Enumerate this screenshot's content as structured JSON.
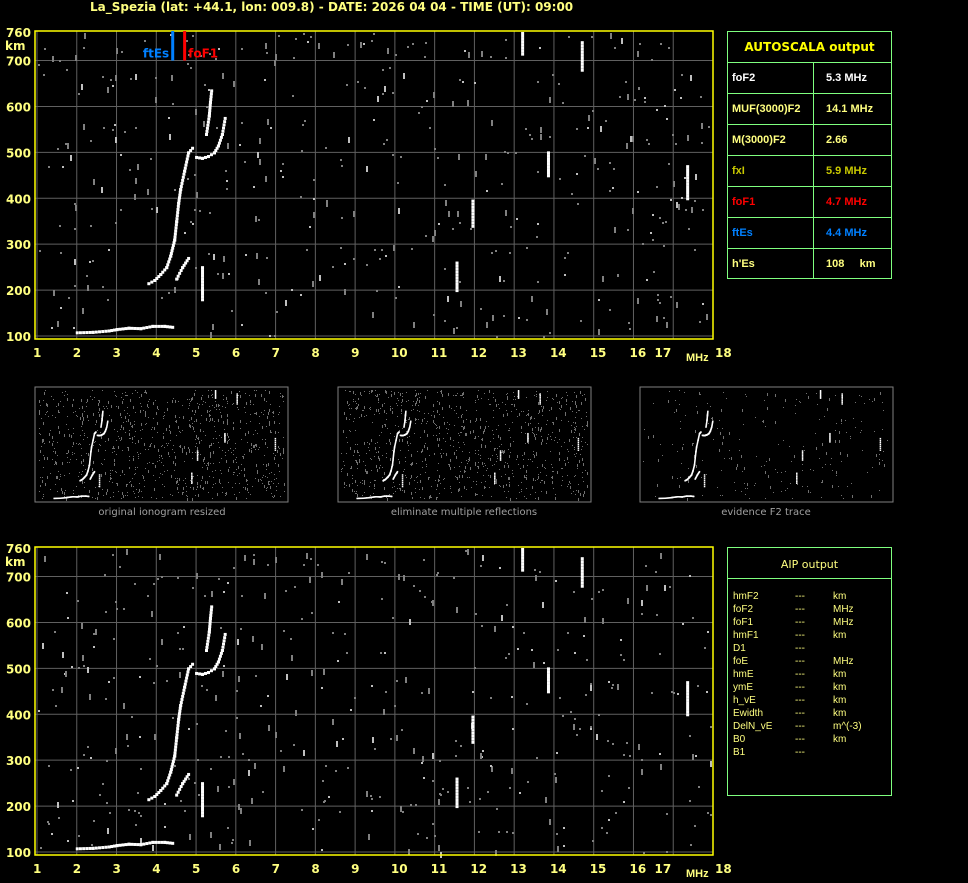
{
  "header": {
    "title": "La_Spezia (lat: +44.1, lon: 009.8) - DATE: 2026 04 04 - TIME (UT): 09:00"
  },
  "colors": {
    "axis": "#ffff00",
    "label": "#ffff80",
    "grid": "#606060",
    "panel_border": "#7fff7f",
    "foF1": "#ff0000",
    "ftEs": "#0080ff",
    "fxI": "#c8c800",
    "trace": "#ffffff",
    "noise": "#808080"
  },
  "chart_data": [
    {
      "type": "scatter",
      "title": "",
      "xlabel": "MHz",
      "ylabel": "km",
      "xlim": [
        1,
        18
      ],
      "ylim": [
        100,
        760
      ],
      "xticks": [
        "1",
        "2",
        "3",
        "4",
        "5",
        "6",
        "7",
        "8",
        "9",
        "10",
        "11",
        "12",
        "13",
        "14",
        "15",
        "16",
        "17",
        "18"
      ],
      "yticks": [
        "760",
        "700",
        "600",
        "500",
        "400",
        "300",
        "200",
        "100"
      ],
      "grid": true,
      "markers": [
        {
          "label": "ftEs",
          "freq": 4.4,
          "color": "#0080ff"
        },
        {
          "label": "foF1",
          "freq": 4.7,
          "color": "#ff0000"
        }
      ],
      "traces": [
        [
          [
            2.0,
            108
          ],
          [
            2.4,
            109
          ],
          [
            2.8,
            112
          ],
          [
            3.0,
            115
          ],
          [
            3.3,
            118
          ],
          [
            3.6,
            117
          ],
          [
            3.9,
            122
          ],
          [
            4.2,
            122
          ],
          [
            4.4,
            120
          ]
        ],
        [
          [
            3.8,
            215
          ],
          [
            3.95,
            222
          ],
          [
            4.1,
            235
          ],
          [
            4.25,
            250
          ],
          [
            4.35,
            275
          ],
          [
            4.45,
            310
          ],
          [
            4.5,
            350
          ],
          [
            4.55,
            390
          ],
          [
            4.6,
            420
          ],
          [
            4.7,
            460
          ],
          [
            4.8,
            500
          ],
          [
            4.9,
            510
          ]
        ],
        [
          [
            4.5,
            225
          ],
          [
            4.65,
            250
          ],
          [
            4.8,
            270
          ]
        ],
        [
          [
            5.0,
            490
          ],
          [
            5.15,
            488
          ],
          [
            5.3,
            492
          ],
          [
            5.45,
            500
          ],
          [
            5.55,
            515
          ],
          [
            5.65,
            540
          ],
          [
            5.72,
            575
          ]
        ],
        [
          [
            5.25,
            540
          ],
          [
            5.32,
            580
          ],
          [
            5.35,
            610
          ],
          [
            5.38,
            635
          ]
        ],
        [
          [
            5.15,
            180
          ],
          [
            5.15,
            250
          ]
        ],
        [
          [
            11.55,
            200
          ],
          [
            11.55,
            260
          ]
        ],
        [
          [
            11.95,
            340
          ],
          [
            11.95,
            395
          ]
        ],
        [
          [
            13.2,
            715
          ],
          [
            13.2,
            760
          ]
        ],
        [
          [
            13.85,
            450
          ],
          [
            13.85,
            500
          ]
        ],
        [
          [
            14.7,
            680
          ],
          [
            14.7,
            740
          ]
        ],
        [
          [
            17.35,
            400
          ],
          [
            17.35,
            470
          ]
        ]
      ]
    },
    {
      "type": "scatter",
      "title": "",
      "xlabel": "MHz",
      "ylabel": "km",
      "xlim": [
        1,
        18
      ],
      "ylim": [
        100,
        760
      ],
      "xticks": [
        "1",
        "2",
        "3",
        "4",
        "5",
        "6",
        "7",
        "8",
        "9",
        "10",
        "11",
        "12",
        "13",
        "14",
        "15",
        "16",
        "17",
        "18"
      ],
      "yticks": [
        "760",
        "700",
        "600",
        "500",
        "400",
        "300",
        "200",
        "100"
      ],
      "grid": true
    }
  ],
  "thumbnails": [
    {
      "caption": "original ionogram resized"
    },
    {
      "caption": "eliminate multiple reflections"
    },
    {
      "caption": "evidence F2 trace"
    }
  ],
  "autoscala": {
    "title": "AUTOSCALA output",
    "rows": [
      {
        "key": "foF2",
        "value": "5.3 MHz",
        "color": "#ffffff"
      },
      {
        "key": "MUF(3000)F2",
        "value": "14.1 MHz",
        "color": "#ffff80"
      },
      {
        "key": "M(3000)F2",
        "value": "2.66",
        "color": "#ffff80"
      },
      {
        "key": "fxI",
        "value": "5.9 MHz",
        "color": "#c8c800"
      },
      {
        "key": "foF1",
        "value": "4.7 MHz",
        "color": "#ff0000"
      },
      {
        "key": "ftEs",
        "value": "4.4 MHz",
        "color": "#0080ff"
      },
      {
        "key": "h'Es",
        "value": "108     km",
        "color": "#ffff80"
      }
    ]
  },
  "aip": {
    "title": "AIP output",
    "rows": [
      {
        "key": "hmF2",
        "value": "---",
        "unit": "km"
      },
      {
        "key": "foF2",
        "value": "---",
        "unit": "MHz"
      },
      {
        "key": "foF1",
        "value": "---",
        "unit": "MHz"
      },
      {
        "key": "hmF1",
        "value": "---",
        "unit": "km"
      },
      {
        "key": "D1",
        "value": "---",
        "unit": ""
      },
      {
        "key": "foE",
        "value": "---",
        "unit": "MHz"
      },
      {
        "key": "hmE",
        "value": "---",
        "unit": "km"
      },
      {
        "key": "ymE",
        "value": "---",
        "unit": "km"
      },
      {
        "key": "h_vE",
        "value": "---",
        "unit": "km"
      },
      {
        "key": "Ewidth",
        "value": "---",
        "unit": "km"
      },
      {
        "key": "DelN_vE",
        "value": "---",
        "unit": "m^(-3)"
      },
      {
        "key": "B0",
        "value": "---",
        "unit": "km"
      },
      {
        "key": "B1",
        "value": "---",
        "unit": ""
      }
    ]
  }
}
